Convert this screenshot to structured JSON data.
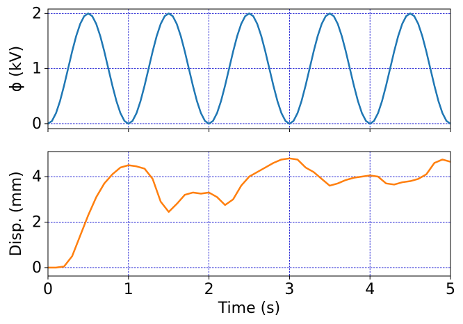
{
  "chart_data": [
    {
      "type": "line",
      "ylabel": "ϕ (kV)",
      "x": [
        0,
        0.05,
        0.1,
        0.15,
        0.2,
        0.25,
        0.3,
        0.35,
        0.4,
        0.45,
        0.5,
        0.55,
        0.6,
        0.65,
        0.7,
        0.75,
        0.8,
        0.85,
        0.9,
        0.95,
        1,
        1.05,
        1.1,
        1.15,
        1.2,
        1.25,
        1.3,
        1.35,
        1.4,
        1.45,
        1.5,
        1.55,
        1.6,
        1.65,
        1.7,
        1.75,
        1.8,
        1.85,
        1.9,
        1.95,
        2,
        2.05,
        2.1,
        2.15,
        2.2,
        2.25,
        2.3,
        2.35,
        2.4,
        2.45,
        2.5,
        2.55,
        2.6,
        2.65,
        2.7,
        2.75,
        2.8,
        2.85,
        2.9,
        2.95,
        3,
        3.05,
        3.1,
        3.15,
        3.2,
        3.25,
        3.3,
        3.35,
        3.4,
        3.45,
        3.5,
        3.55,
        3.6,
        3.65,
        3.7,
        3.75,
        3.8,
        3.85,
        3.9,
        3.95,
        4,
        4.05,
        4.1,
        4.15,
        4.2,
        4.25,
        4.3,
        4.35,
        4.4,
        4.45,
        4.5,
        4.55,
        4.6,
        4.65,
        4.7,
        4.75,
        4.8,
        4.85,
        4.9,
        4.95,
        5
      ],
      "series": [
        {
          "color": "#1f77b4",
          "values": [
            0,
            0.0489,
            0.191,
            0.412,
            0.691,
            1,
            1.309,
            1.588,
            1.809,
            1.951,
            2,
            1.951,
            1.809,
            1.588,
            1.309,
            1,
            0.691,
            0.412,
            0.191,
            0.0489,
            0,
            0.0489,
            0.191,
            0.412,
            0.691,
            1,
            1.309,
            1.588,
            1.809,
            1.951,
            2,
            1.951,
            1.809,
            1.588,
            1.309,
            1,
            0.691,
            0.412,
            0.191,
            0.0489,
            0,
            0.0489,
            0.191,
            0.412,
            0.691,
            1,
            1.309,
            1.588,
            1.809,
            1.951,
            2,
            1.951,
            1.809,
            1.588,
            1.309,
            1,
            0.691,
            0.412,
            0.191,
            0.0489,
            0,
            0.0489,
            0.191,
            0.412,
            0.691,
            1,
            1.309,
            1.588,
            1.809,
            1.951,
            2,
            1.951,
            1.809,
            1.588,
            1.309,
            1,
            0.691,
            0.412,
            0.191,
            0.0489,
            0,
            0.0489,
            0.191,
            0.412,
            0.691,
            1,
            1.309,
            1.588,
            1.809,
            1.951,
            2,
            1.951,
            1.809,
            1.588,
            1.309,
            1,
            0.691,
            0.412,
            0.191,
            0.0489,
            0
          ]
        }
      ],
      "xlim": [
        0,
        5
      ],
      "ylim": [
        -0.09,
        2.08
      ],
      "xticks": [
        0,
        1,
        2,
        3,
        4,
        5
      ],
      "yticks": [
        0,
        1,
        2
      ],
      "grid": true
    },
    {
      "type": "line",
      "xlabel": "Time (s)",
      "ylabel": "Disp. (mm)",
      "x": [
        0,
        0.1,
        0.2,
        0.3,
        0.4,
        0.5,
        0.6,
        0.7,
        0.8,
        0.9,
        1,
        1.1,
        1.2,
        1.3,
        1.4,
        1.5,
        1.6,
        1.7,
        1.8,
        1.9,
        2,
        2.1,
        2.2,
        2.3,
        2.4,
        2.5,
        2.6,
        2.7,
        2.8,
        2.9,
        3,
        3.1,
        3.2,
        3.3,
        3.4,
        3.5,
        3.6,
        3.7,
        3.8,
        3.9,
        4,
        4.1,
        4.2,
        4.3,
        4.4,
        4.5,
        4.6,
        4.7,
        4.8,
        4.9,
        5
      ],
      "series": [
        {
          "color": "#ff7f0e",
          "values": [
            0,
            0,
            0.05,
            0.5,
            1.4,
            2.3,
            3.1,
            3.7,
            4.1,
            4.4,
            4.5,
            4.45,
            4.35,
            3.9,
            2.9,
            2.45,
            2.8,
            3.2,
            3.3,
            3.25,
            3.3,
            3.1,
            2.75,
            3.0,
            3.6,
            4.0,
            4.2,
            4.4,
            4.6,
            4.75,
            4.8,
            4.75,
            4.4,
            4.2,
            3.9,
            3.6,
            3.7,
            3.85,
            3.95,
            4.0,
            4.05,
            4.0,
            3.7,
            3.65,
            3.75,
            3.8,
            3.9,
            4.1,
            4.6,
            4.75,
            4.65
          ]
        }
      ],
      "xlim": [
        0,
        5
      ],
      "ylim": [
        -0.37,
        5.1
      ],
      "xticks": [
        0,
        1,
        2,
        3,
        4,
        5
      ],
      "yticks": [
        0,
        2,
        4
      ],
      "grid": true
    }
  ]
}
